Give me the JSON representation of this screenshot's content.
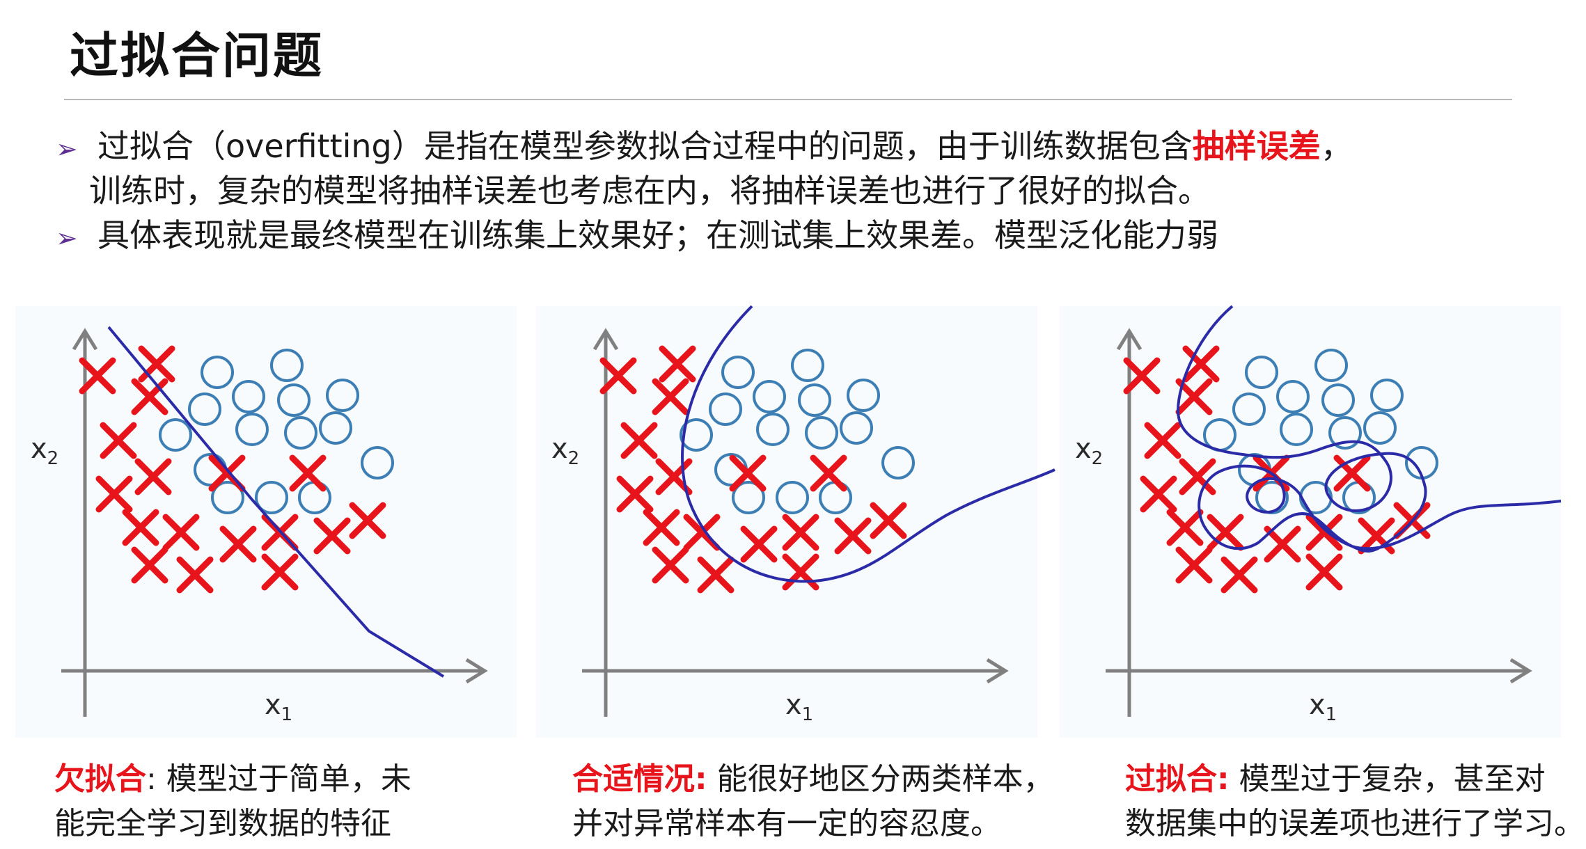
{
  "title": "过拟合问题",
  "bullets": [
    {
      "line1_prefix": "过拟合（overfitting）是指在模型参数拟合过程中的问题，由于训练数据包含",
      "line1_emphasis": "抽样误差",
      "line1_suffix": "，",
      "line2": "训练时，复杂的模型将抽样误差也考虑在内，将抽样误差也进行了很好的拟合。"
    },
    {
      "line1_prefix": "具体表现就是最终模型在训练集上效果好；在测试集上效果差。模型泛化能力弱"
    }
  ],
  "bullet_marker": "➢",
  "colors": {
    "cross": "#e8141b",
    "circle": "#3d7fb4",
    "curve": "#2b2ba8",
    "emphasis": "#e8141b",
    "bullet": "#5d2d91"
  },
  "axis_labels": {
    "x_base": "x",
    "x_sub": "1",
    "y_base": "x",
    "y_sub": "2"
  },
  "panels": [
    {
      "label": "欠拟合",
      "sep": ":",
      "rest1": " 模型过于简单，未",
      "rest2": "能完全学习到数据的特征",
      "boundary": "straight line"
    },
    {
      "label": "合适情况:",
      "sep": "",
      "rest1": " 能很好地区分两类样本，",
      "rest2": "并对异常样本有一定的容忍度。",
      "boundary": "smooth curve"
    },
    {
      "label": "过拟合:",
      "sep": "",
      "rest1": " 模型过于复杂，甚至对",
      "rest2": "数据集中的误差项也进行了学习。",
      "boundary": "wiggly curve"
    }
  ]
}
